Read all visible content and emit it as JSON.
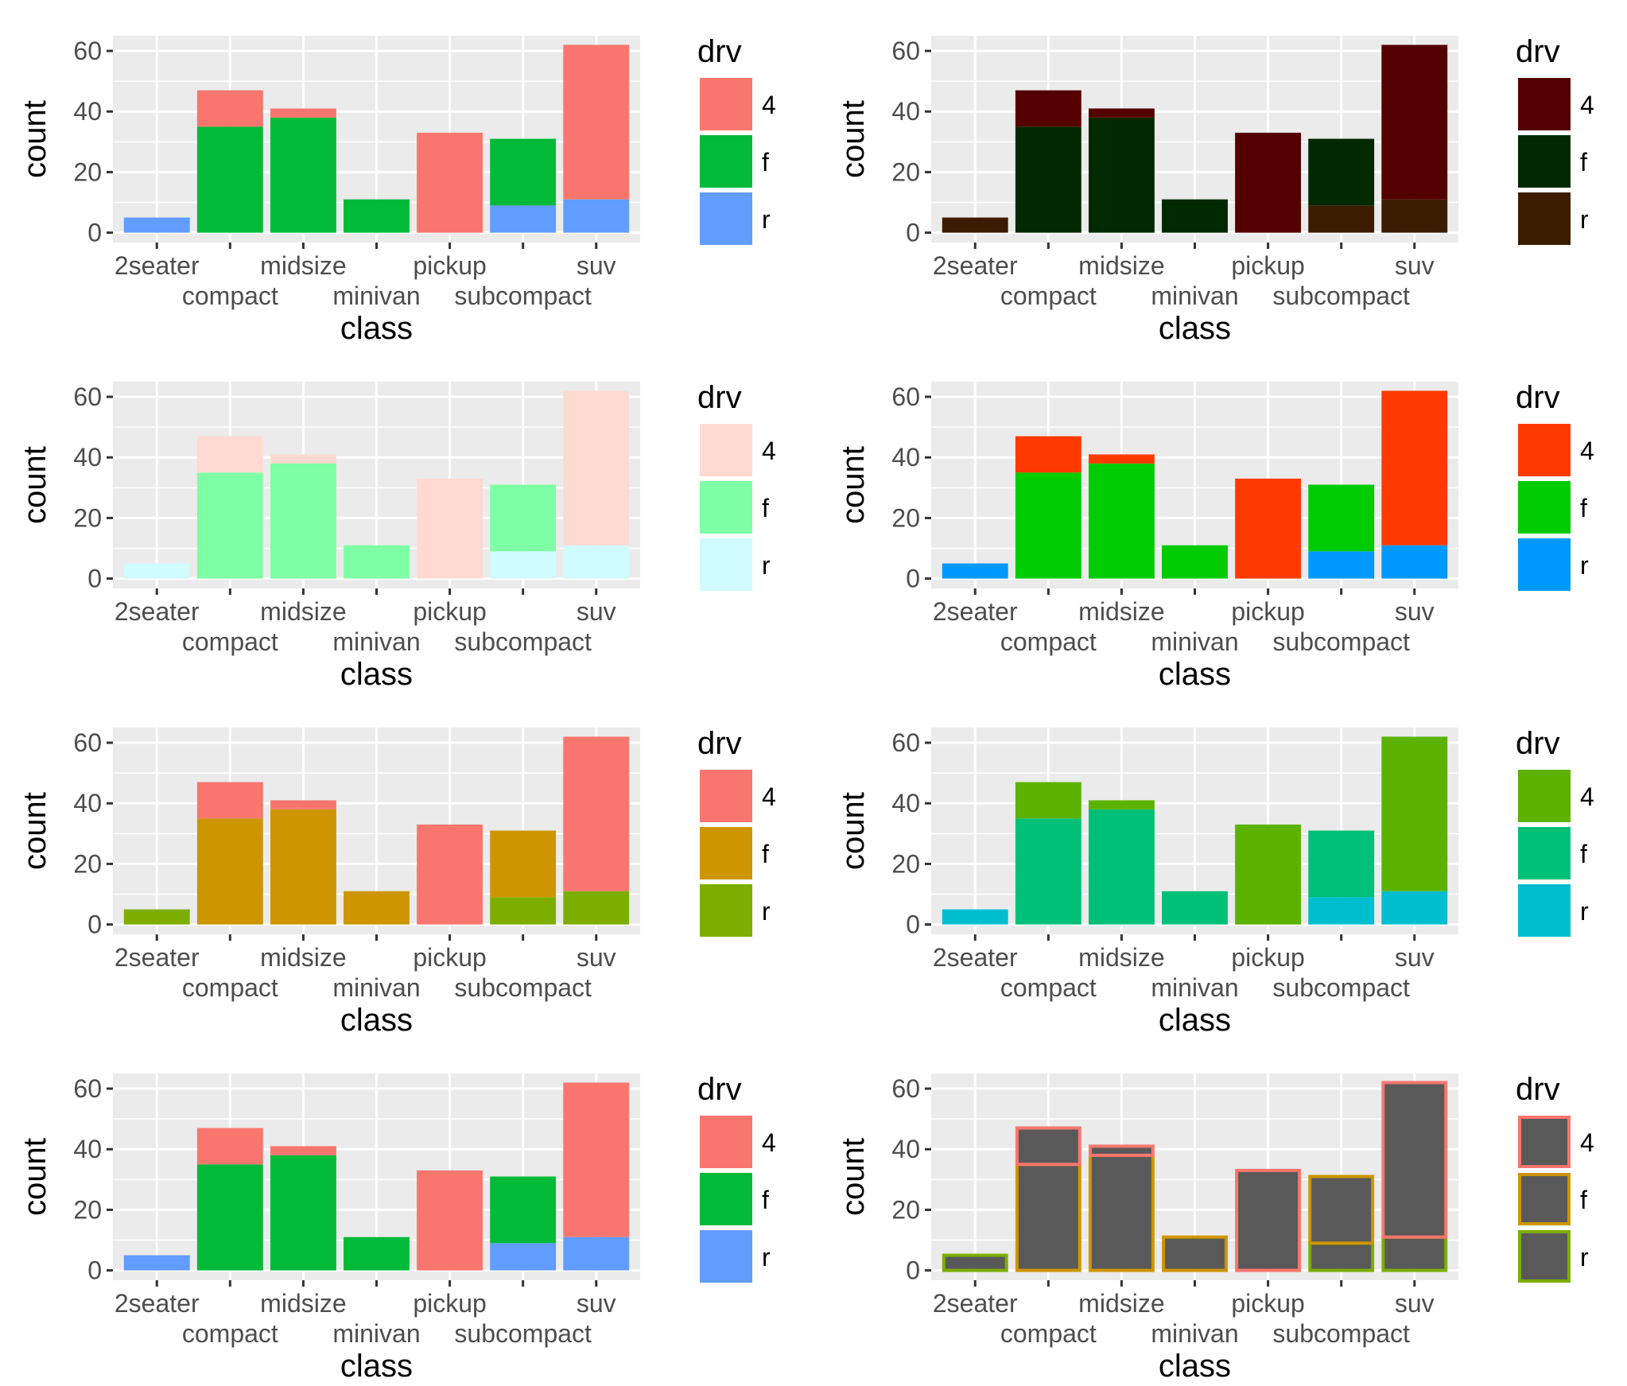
{
  "chart_data": [
    {
      "type": "bar",
      "stacked": true,
      "xlabel": "class",
      "ylabel": "count",
      "ylim": [
        0,
        65
      ],
      "yticks": [
        0,
        20,
        40,
        60
      ],
      "grid": true,
      "categories": [
        "2seater",
        "compact",
        "midsize",
        "minivan",
        "pickup",
        "subcompact",
        "suv"
      ],
      "legend": {
        "title": "drv",
        "position": "right"
      },
      "series": [
        {
          "name": "4",
          "values": [
            0,
            12,
            3,
            0,
            33,
            0,
            51
          ],
          "fill": "#F8766D"
        },
        {
          "name": "f",
          "values": [
            0,
            35,
            38,
            11,
            0,
            22,
            0
          ],
          "fill": "#00BA38"
        },
        {
          "name": "r",
          "values": [
            5,
            0,
            0,
            0,
            0,
            9,
            11
          ],
          "fill": "#619CFF"
        }
      ]
    },
    {
      "type": "bar",
      "stacked": true,
      "xlabel": "class",
      "ylabel": "count",
      "ylim": [
        0,
        65
      ],
      "yticks": [
        0,
        20,
        40,
        60
      ],
      "grid": true,
      "categories": [
        "2seater",
        "compact",
        "midsize",
        "minivan",
        "pickup",
        "subcompact",
        "suv"
      ],
      "legend": {
        "title": "drv",
        "position": "right"
      },
      "series": [
        {
          "name": "4",
          "values": [
            0,
            12,
            3,
            0,
            33,
            0,
            51
          ],
          "fill": "#550000"
        },
        {
          "name": "f",
          "values": [
            0,
            35,
            38,
            11,
            0,
            22,
            0
          ],
          "fill": "#002900"
        },
        {
          "name": "r",
          "values": [
            5,
            0,
            0,
            0,
            0,
            9,
            11
          ],
          "fill": "#3C1C00"
        }
      ]
    },
    {
      "type": "bar",
      "stacked": true,
      "xlabel": "class",
      "ylabel": "count",
      "ylim": [
        0,
        65
      ],
      "yticks": [
        0,
        20,
        40,
        60
      ],
      "grid": true,
      "categories": [
        "2seater",
        "compact",
        "midsize",
        "minivan",
        "pickup",
        "subcompact",
        "suv"
      ],
      "legend": {
        "title": "drv",
        "position": "right"
      },
      "series": [
        {
          "name": "4",
          "values": [
            0,
            12,
            3,
            0,
            33,
            0,
            51
          ],
          "fill": "#FFDAD2"
        },
        {
          "name": "f",
          "values": [
            0,
            35,
            38,
            11,
            0,
            22,
            0
          ],
          "fill": "#7FFFA5"
        },
        {
          "name": "r",
          "values": [
            5,
            0,
            0,
            0,
            0,
            9,
            11
          ],
          "fill": "#D0FBFF"
        }
      ]
    },
    {
      "type": "bar",
      "stacked": true,
      "xlabel": "class",
      "ylabel": "count",
      "ylim": [
        0,
        65
      ],
      "yticks": [
        0,
        20,
        40,
        60
      ],
      "grid": true,
      "categories": [
        "2seater",
        "compact",
        "midsize",
        "minivan",
        "pickup",
        "subcompact",
        "suv"
      ],
      "legend": {
        "title": "drv",
        "position": "right"
      },
      "series": [
        {
          "name": "4",
          "values": [
            0,
            12,
            3,
            0,
            33,
            0,
            51
          ],
          "fill": "#FF3A00"
        },
        {
          "name": "f",
          "values": [
            0,
            35,
            38,
            11,
            0,
            22,
            0
          ],
          "fill": "#00CC00"
        },
        {
          "name": "r",
          "values": [
            5,
            0,
            0,
            0,
            0,
            9,
            11
          ],
          "fill": "#0099FF"
        }
      ]
    },
    {
      "type": "bar",
      "stacked": true,
      "xlabel": "class",
      "ylabel": "count",
      "ylim": [
        0,
        65
      ],
      "yticks": [
        0,
        20,
        40,
        60
      ],
      "grid": true,
      "categories": [
        "2seater",
        "compact",
        "midsize",
        "minivan",
        "pickup",
        "subcompact",
        "suv"
      ],
      "legend": {
        "title": "drv",
        "position": "right"
      },
      "series": [
        {
          "name": "4",
          "values": [
            0,
            12,
            3,
            0,
            33,
            0,
            51
          ],
          "fill": "#F8766D"
        },
        {
          "name": "f",
          "values": [
            0,
            35,
            38,
            11,
            0,
            22,
            0
          ],
          "fill": "#CD9600"
        },
        {
          "name": "r",
          "values": [
            5,
            0,
            0,
            0,
            0,
            9,
            11
          ],
          "fill": "#7CAE00"
        }
      ]
    },
    {
      "type": "bar",
      "stacked": true,
      "xlabel": "class",
      "ylabel": "count",
      "ylim": [
        0,
        65
      ],
      "yticks": [
        0,
        20,
        40,
        60
      ],
      "grid": true,
      "categories": [
        "2seater",
        "compact",
        "midsize",
        "minivan",
        "pickup",
        "subcompact",
        "suv"
      ],
      "legend": {
        "title": "drv",
        "position": "right"
      },
      "series": [
        {
          "name": "4",
          "values": [
            0,
            12,
            3,
            0,
            33,
            0,
            51
          ],
          "fill": "#5BB300"
        },
        {
          "name": "f",
          "values": [
            0,
            35,
            38,
            11,
            0,
            22,
            0
          ],
          "fill": "#00C078"
        },
        {
          "name": "r",
          "values": [
            5,
            0,
            0,
            0,
            0,
            9,
            11
          ],
          "fill": "#00BED0"
        }
      ]
    },
    {
      "type": "bar",
      "stacked": true,
      "xlabel": "class",
      "ylabel": "count",
      "ylim": [
        0,
        65
      ],
      "yticks": [
        0,
        20,
        40,
        60
      ],
      "grid": true,
      "categories": [
        "2seater",
        "compact",
        "midsize",
        "minivan",
        "pickup",
        "subcompact",
        "suv"
      ],
      "legend": {
        "title": "drv",
        "position": "right"
      },
      "series": [
        {
          "name": "4",
          "values": [
            0,
            12,
            3,
            0,
            33,
            0,
            51
          ],
          "fill": "#F8766D"
        },
        {
          "name": "f",
          "values": [
            0,
            35,
            38,
            11,
            0,
            22,
            0
          ],
          "fill": "#00BA38"
        },
        {
          "name": "r",
          "values": [
            5,
            0,
            0,
            0,
            0,
            9,
            11
          ],
          "fill": "#619CFF"
        }
      ]
    },
    {
      "type": "bar",
      "stacked": true,
      "xlabel": "class",
      "ylabel": "count",
      "ylim": [
        0,
        65
      ],
      "yticks": [
        0,
        20,
        40,
        60
      ],
      "grid": true,
      "categories": [
        "2seater",
        "compact",
        "midsize",
        "minivan",
        "pickup",
        "subcompact",
        "suv"
      ],
      "legend": {
        "title": "drv",
        "position": "right"
      },
      "series": [
        {
          "name": "4",
          "values": [
            0,
            12,
            3,
            0,
            33,
            0,
            51
          ],
          "fill": "#595959",
          "outline": "#F8766D"
        },
        {
          "name": "f",
          "values": [
            0,
            35,
            38,
            11,
            0,
            22,
            0
          ],
          "fill": "#595959",
          "outline": "#CD9600"
        },
        {
          "name": "r",
          "values": [
            5,
            0,
            0,
            0,
            0,
            9,
            11
          ],
          "fill": "#595959",
          "outline": "#7CAE00"
        }
      ]
    }
  ]
}
